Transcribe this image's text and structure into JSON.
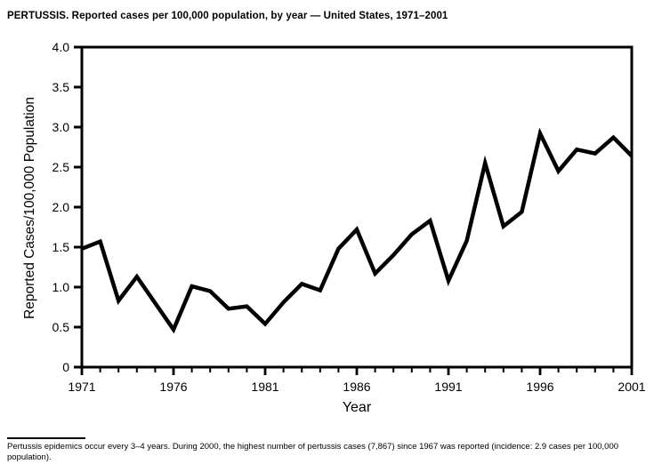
{
  "page": {
    "title": "PERTUSSIS. Reported cases per 100,000 population, by year — United States, 1971–2001",
    "footnote": "Pertussis epidemics occur every 3–4 years. During 2000, the highest number of pertussis cases (7,867) since 1967 was reported (incidence: 2.9 cases per 100,000 population)."
  },
  "chart_data": {
    "type": "line",
    "title": "PERTUSSIS. Reported cases per 100,000 population, by year — United States, 1971–2001",
    "xlabel": "Year",
    "ylabel": "Reported Cases/100,000 Population",
    "x": [
      1971,
      1972,
      1973,
      1974,
      1975,
      1976,
      1977,
      1978,
      1979,
      1980,
      1981,
      1982,
      1983,
      1984,
      1985,
      1986,
      1987,
      1988,
      1989,
      1990,
      1991,
      1992,
      1993,
      1994,
      1995,
      1996,
      1997,
      1998,
      1999,
      2000,
      2001
    ],
    "values": [
      1.48,
      1.57,
      0.83,
      1.13,
      0.8,
      0.47,
      1.01,
      0.95,
      0.73,
      0.76,
      0.54,
      0.81,
      1.04,
      0.96,
      1.48,
      1.72,
      1.17,
      1.4,
      1.66,
      1.83,
      1.08,
      1.58,
      2.55,
      1.76,
      1.94,
      2.92,
      2.45,
      2.72,
      2.67,
      2.87,
      2.64
    ],
    "xlim": [
      1971,
      2001
    ],
    "ylim": [
      0,
      4.0
    ],
    "yticks": [
      0,
      0.5,
      1.0,
      1.5,
      2.0,
      2.5,
      3.0,
      3.5,
      4.0
    ],
    "ytick_labels": [
      "0",
      "0.5",
      "1.0",
      "1.5",
      "2.0",
      "2.5",
      "3.0",
      "3.5",
      "4.0"
    ],
    "xticks": [
      1971,
      1976,
      1981,
      1986,
      1991,
      1996,
      2001
    ],
    "xminor_step": 1,
    "grid": false,
    "legend": "none",
    "line_color": "#000000",
    "frame_color": "#000000",
    "background": "#ffffff"
  }
}
